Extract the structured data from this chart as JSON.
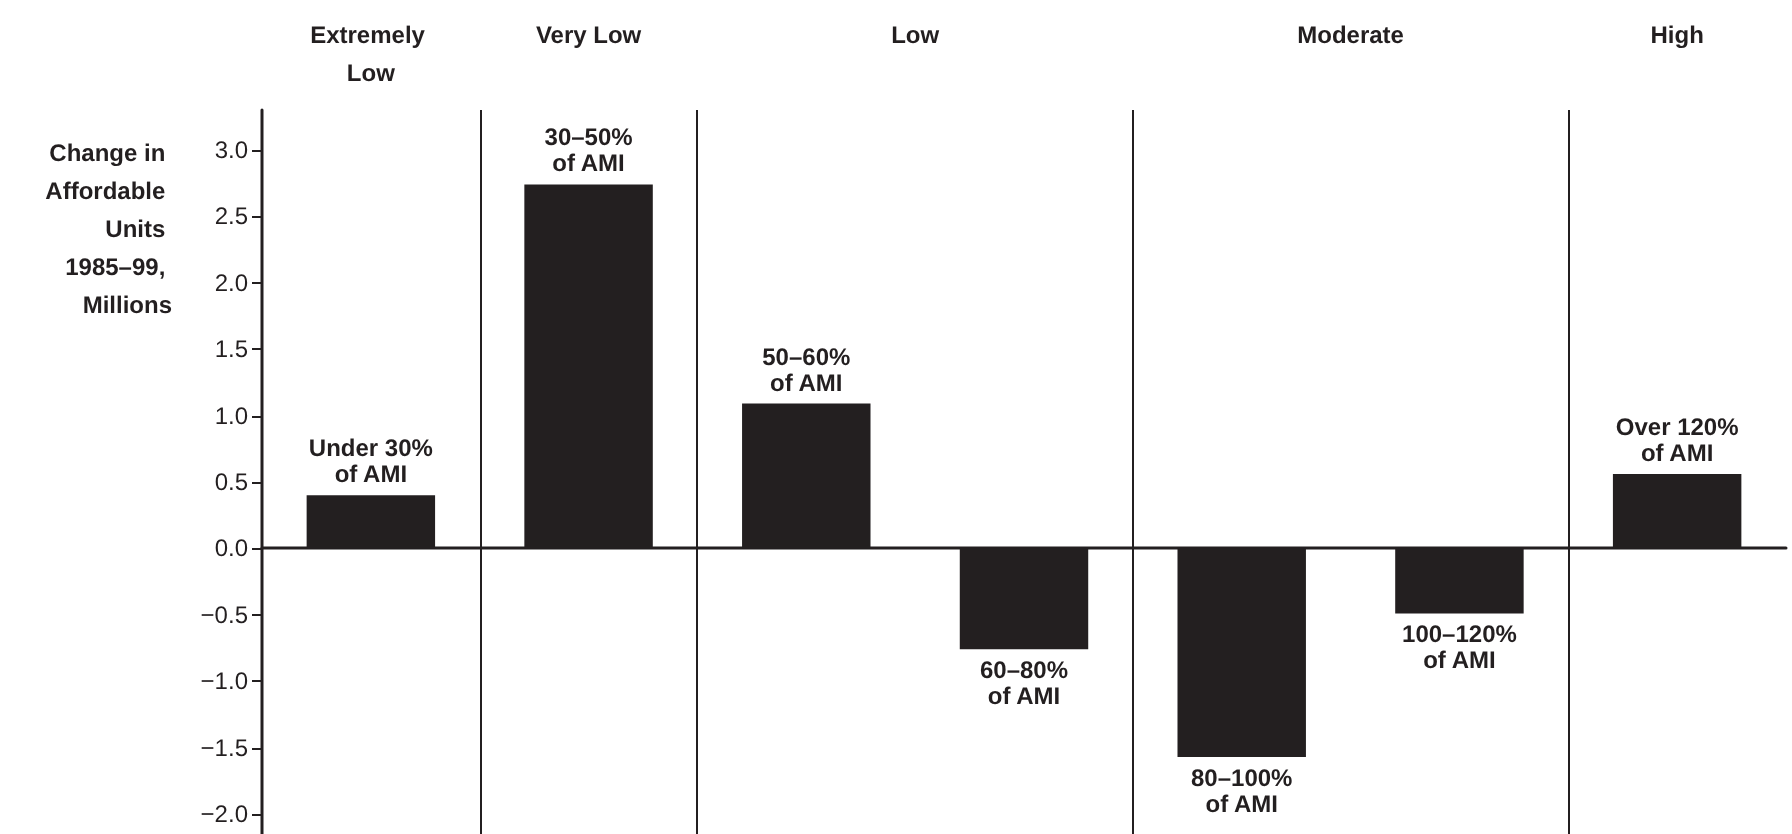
{
  "chart_data": {
    "type": "bar",
    "ylabel": "Change in Affordable Units 1985–99, Millions",
    "categories": [
      "Under 30% of AMI",
      "30–50% of AMI",
      "50–60% of AMI",
      "60–80% of AMI",
      "80–100% of AMI",
      "100–120% of AMI",
      "Over 120% of AMI"
    ],
    "values": [
      0.4,
      2.74,
      1.09,
      -0.76,
      -1.57,
      -0.49,
      0.56
    ],
    "color": "#231f20",
    "ylim": [
      -2.15,
      3.3
    ],
    "yticks": [
      {
        "value": -2,
        "label": "−2.0"
      },
      {
        "value": -1.5,
        "label": "−1.5"
      },
      {
        "value": -1,
        "label": "−1.0"
      },
      {
        "value": -0.5,
        "label": "−0.5"
      },
      {
        "value": 0,
        "label": "0.0"
      },
      {
        "value": 0.5,
        "label": "0.5"
      },
      {
        "value": 1,
        "label": "1.0"
      },
      {
        "value": 1.5,
        "label": "1.5"
      },
      {
        "value": 2,
        "label": "2.0"
      },
      {
        "value": 2.5,
        "label": "2.5"
      },
      {
        "value": 3,
        "label": "3.0"
      }
    ],
    "annotations": [
      "Extremely Low",
      "Very Low",
      "Low",
      "Moderate",
      "High"
    ],
    "tick_labels": "y",
    "grid": false
  }
}
